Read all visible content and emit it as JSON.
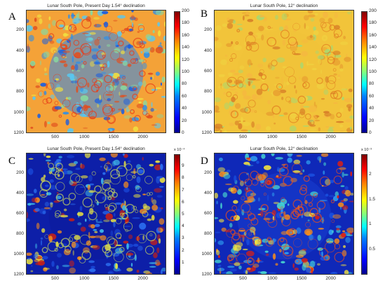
{
  "colors": {
    "blue_dark": "#00008f",
    "blue": "#0000ff",
    "cyan": "#00ffff",
    "yellow": "#ffff00",
    "orange": "#ff8000",
    "red": "#ff0000",
    "red_dark": "#800000"
  },
  "chart_data": [
    {
      "type": "heatmap",
      "panel_letter": "A",
      "title": "Lunar South Pole, Present Day 1.54° declination",
      "x_ticks": [
        "500",
        "1000",
        "1500",
        "2000"
      ],
      "y_ticks": [
        "200",
        "400",
        "600",
        "800",
        "1000",
        "1200"
      ],
      "xlim": [
        1,
        2400
      ],
      "ylim": [
        1,
        1200
      ],
      "colorbar": {
        "min": 0,
        "max": 200,
        "ticks": [
          "0",
          "20",
          "40",
          "60",
          "80",
          "100",
          "120",
          "140",
          "160",
          "180",
          "200"
        ],
        "exponent": ""
      },
      "colormap": "jet"
    },
    {
      "type": "heatmap",
      "panel_letter": "B",
      "title": "Lunar South Pole, 12° declination",
      "x_ticks": [
        "500",
        "1000",
        "1500",
        "2000"
      ],
      "y_ticks": [
        "200",
        "400",
        "600",
        "800",
        "1000",
        "1200"
      ],
      "xlim": [
        1,
        2400
      ],
      "ylim": [
        1,
        1200
      ],
      "colorbar": {
        "min": 0,
        "max": 200,
        "ticks": [
          "0",
          "20",
          "40",
          "60",
          "80",
          "100",
          "120",
          "140",
          "160",
          "180",
          "200"
        ],
        "exponent": ""
      },
      "colormap": "jet"
    },
    {
      "type": "heatmap",
      "panel_letter": "C",
      "title": "Lunar South Pole, Present Day 1.54° declination",
      "x_ticks": [
        "500",
        "1000",
        "1500",
        "2000"
      ],
      "y_ticks": [
        "200",
        "400",
        "600",
        "800",
        "1000",
        "1200"
      ],
      "xlim": [
        1,
        2400
      ],
      "ylim": [
        1,
        1200
      ],
      "colorbar": {
        "min": 0,
        "max": 10,
        "ticks": [
          "1",
          "2",
          "3",
          "4",
          "5",
          "6",
          "7",
          "8",
          "9"
        ],
        "exponent": "x 10⁻⁴"
      },
      "colormap": "jet"
    },
    {
      "type": "heatmap",
      "panel_letter": "D",
      "title": "Lunar South Pole, 12° declination",
      "x_ticks": [
        "500",
        "1000",
        "1500",
        "2000"
      ],
      "y_ticks": [
        "200",
        "400",
        "600",
        "800",
        "1000",
        "1200"
      ],
      "xlim": [
        1,
        2400
      ],
      "ylim": [
        1,
        1200
      ],
      "colorbar": {
        "min": 0,
        "max": 2.4,
        "ticks": [
          "0.5",
          "1",
          "1.5",
          "2"
        ],
        "exponent": "x 10⁻³"
      },
      "colormap": "jet"
    }
  ]
}
